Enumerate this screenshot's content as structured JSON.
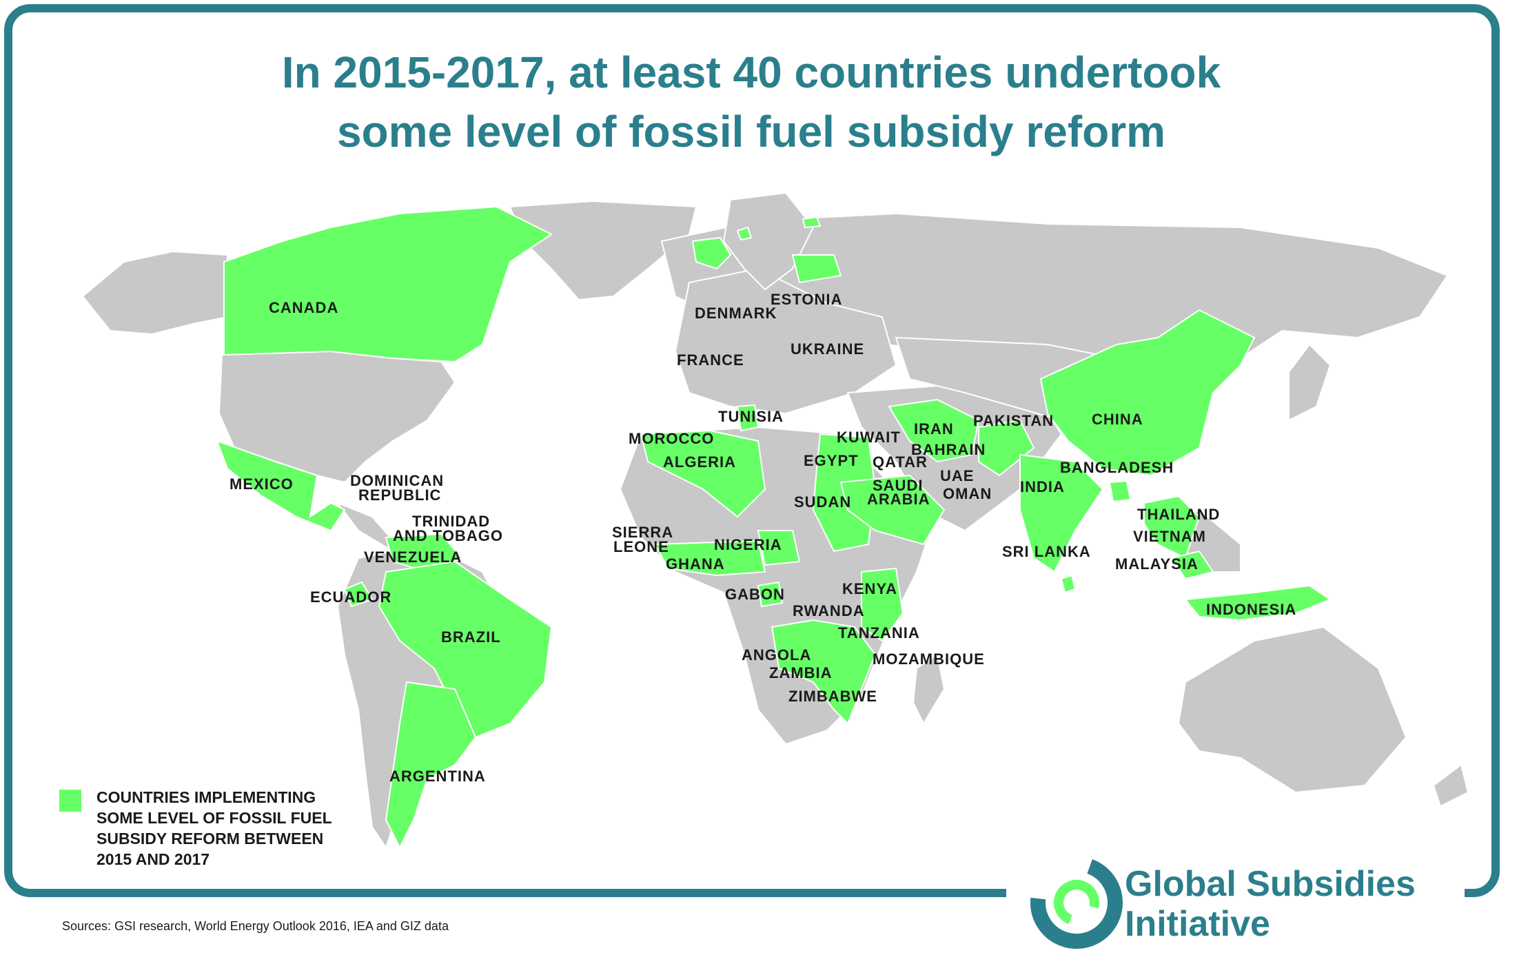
{
  "title": "In 2015-2017, at least 40 countries undertook\nsome level of fossil fuel subsidy reform",
  "colors": {
    "frame": "#2b7f8c",
    "reform_country": "#66ff66",
    "other_land": "#c8c8c8",
    "background": "#ffffff"
  },
  "map": {
    "labels": {
      "canada": "CANADA",
      "mexico": "MEXICO",
      "dominican_republic_1": "DOMINICAN",
      "dominican_republic_2": "REPUBLIC",
      "trinidad_1": "TRINIDAD",
      "trinidad_2": "AND TOBAGO",
      "venezuela": "VENEZUELA",
      "ecuador": "ECUADOR",
      "brazil": "BRAZIL",
      "argentina": "ARGENTINA",
      "estonia": "ESTONIA",
      "denmark": "DENMARK",
      "ukraine": "UKRAINE",
      "france": "FRANCE",
      "tunisia": "TUNISIA",
      "morocco": "MOROCCO",
      "algeria": "ALGERIA",
      "sierra_leone_1": "SIERRA",
      "sierra_leone_2": "LEONE",
      "ghana": "GHANA",
      "nigeria": "NIGERIA",
      "gabon": "GABON",
      "egypt": "EGYPT",
      "sudan": "SUDAN",
      "kenya": "KENYA",
      "rwanda": "RWANDA",
      "tanzania": "TANZANIA",
      "angola": "ANGOLA",
      "zambia": "ZAMBIA",
      "mozambique": "MOZAMBIQUE",
      "zimbabwe": "ZIMBABWE",
      "kuwait": "KUWAIT",
      "iran": "IRAN",
      "bahrain": "BAHRAIN",
      "qatar": "QATAR",
      "uae": "UAE",
      "saudi_arabia_1": "SAUDI",
      "saudi_arabia_2": "ARABIA",
      "oman": "OMAN",
      "pakistan": "PAKISTAN",
      "india": "INDIA",
      "sri_lanka": "SRI LANKA",
      "china": "CHINA",
      "bangladesh": "BANGLADESH",
      "thailand": "THAILAND",
      "vietnam": "VIETNAM",
      "malaysia": "MALAYSIA",
      "indonesia": "INDONESIA"
    }
  },
  "legend": {
    "text": "COUNTRIES IMPLEMENTING\nSOME LEVEL OF FOSSIL FUEL\nSUBSIDY REFORM BETWEEN\n2015 AND 2017"
  },
  "sources": "Sources: GSI research, World Energy Outlook 2016, IEA and GIZ data",
  "organization": {
    "name": "Global Subsidies\nInitiative",
    "logo_icon": "circular-arrows-icon"
  }
}
